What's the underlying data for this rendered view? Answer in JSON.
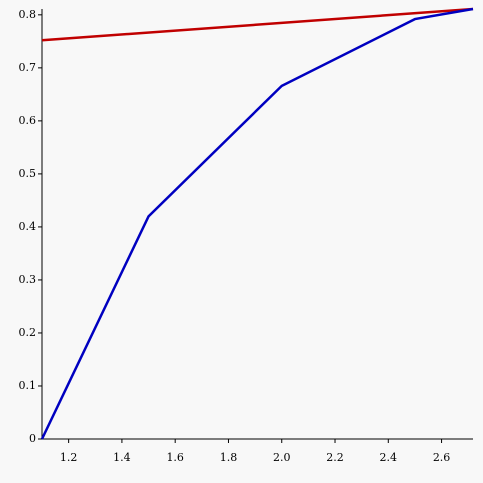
{
  "chart_data": {
    "type": "line",
    "series": [
      {
        "color": "#c00000",
        "x": [
          1.1,
          2.718
        ],
        "values": [
          0.752,
          0.811
        ]
      },
      {
        "color": "#0000c0",
        "x": [
          1.1,
          1.5,
          2.0,
          2.5,
          2.718
        ],
        "values": [
          0,
          0.42,
          0.666,
          0.792,
          0.811
        ]
      }
    ],
    "xlim": [
      1.1,
      2.718
    ],
    "ylim": [
      0,
      0.811
    ],
    "xticks": [
      1.2,
      1.4,
      1.6,
      1.8,
      {
        "value": 2,
        "label": "2.0"
      },
      2.2,
      2.4,
      2.6
    ],
    "yticks": [
      0,
      0.1,
      0.2,
      0.3,
      0.4,
      0.5,
      0.6,
      0.7,
      0.8
    ]
  }
}
